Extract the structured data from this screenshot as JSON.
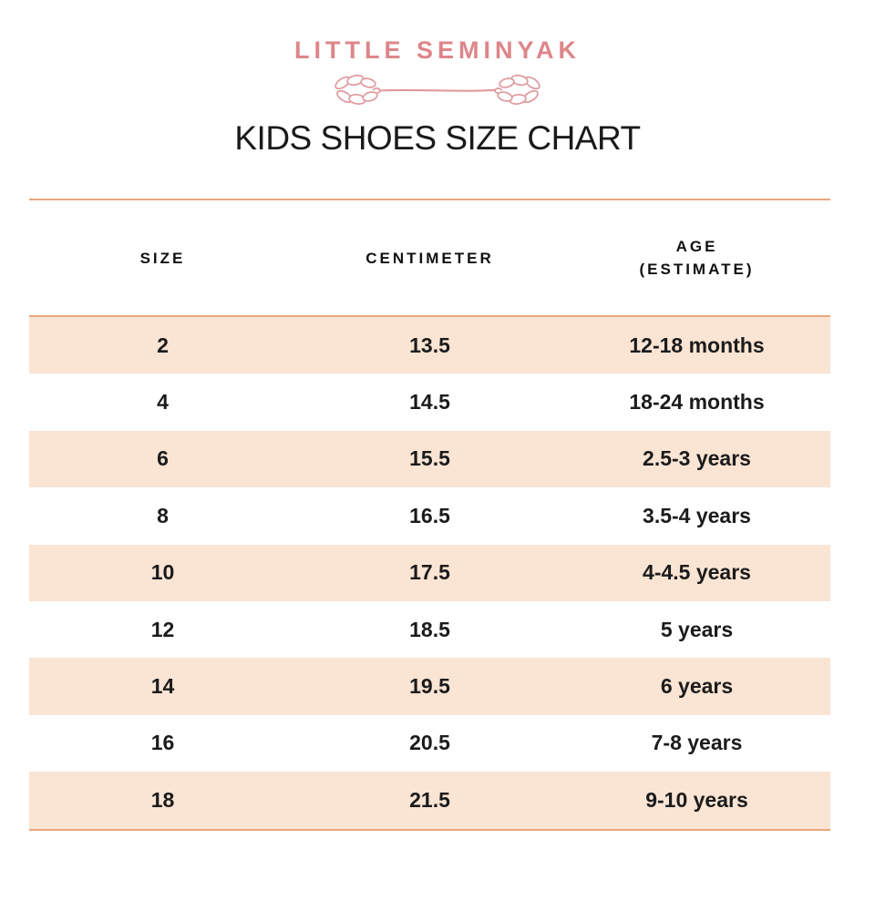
{
  "brand": {
    "name": "LITTLE SEMINYAK"
  },
  "title": "KIDS SHOES SIZE CHART",
  "ornament": {
    "left_icon": "leaf-sprig",
    "right_icon": "leaf-sprig"
  },
  "table": {
    "headers": [
      {
        "id": "size",
        "lines": [
          "SIZE"
        ]
      },
      {
        "id": "centimeter",
        "lines": [
          "CENTIMETER"
        ]
      },
      {
        "id": "age",
        "lines": [
          "AGE",
          "(ESTIMATE)"
        ]
      }
    ],
    "rows": [
      [
        "2",
        "13.5",
        "12-18 months"
      ],
      [
        "4",
        "14.5",
        "18-24 months"
      ],
      [
        "6",
        "15.5",
        "2.5-3 years"
      ],
      [
        "8",
        "16.5",
        "3.5-4 years"
      ],
      [
        "10",
        "17.5",
        "4-4.5 years"
      ],
      [
        "12",
        "18.5",
        "5 years"
      ],
      [
        "14",
        "19.5",
        "6 years"
      ],
      [
        "16",
        "20.5",
        "7-8 years"
      ],
      [
        "18",
        "21.5",
        "9-10 years"
      ]
    ]
  },
  "colors": {
    "brand_pink": "#dd868a",
    "ornament_pink": "#e09a9e",
    "line_orange": "#e8a87c",
    "row_peach": "#fae4d3",
    "text_dark": "#1b1b1b"
  }
}
